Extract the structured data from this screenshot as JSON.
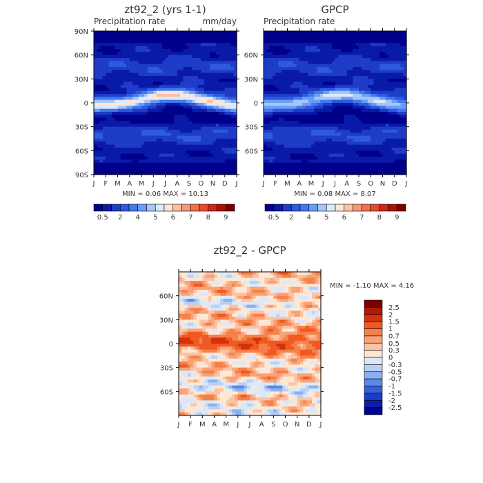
{
  "chart_data": [
    {
      "type": "heatmap",
      "title": "zt92_2 (yrs 1-1)",
      "subtitle_left": "Precipitation rate",
      "subtitle_right": "mm/day",
      "x_ticks": [
        "J",
        "F",
        "M",
        "A",
        "M",
        "J",
        "J",
        "A",
        "S",
        "O",
        "N",
        "D",
        "J"
      ],
      "y_ticks": [
        "90N",
        "60N",
        "30N",
        "0",
        "30S",
        "60S",
        "90S"
      ],
      "stats": "MIN =    0.06 MAX =   10.13",
      "colorbar_labels": [
        "0.5",
        "2",
        "4",
        "5",
        "6",
        "7",
        "8",
        "9"
      ],
      "colorbar_colors": [
        "#00008b",
        "#0a1aa8",
        "#1f3cc8",
        "#2d5ae0",
        "#3e7af0",
        "#6a9ef5",
        "#a7c6f8",
        "#dbe9fb",
        "#fde6d8",
        "#f9c2a6",
        "#f59a78",
        "#f07050",
        "#e64a2e",
        "#cc2a14",
        "#a81208",
        "#7a0000"
      ],
      "max_band_peak": 10.13
    },
    {
      "type": "heatmap",
      "title": "GPCP",
      "subtitle_left": "Precipitation rate",
      "x_ticks": [
        "J",
        "F",
        "M",
        "A",
        "M",
        "J",
        "J",
        "A",
        "S",
        "O",
        "N",
        "D",
        "J"
      ],
      "y_ticks": [
        "60N",
        "30N",
        "0",
        "30S",
        "60S"
      ],
      "stats": "MIN =    0.08 MAX =    8.07",
      "colorbar_labels": [
        "0.5",
        "2",
        "4",
        "5",
        "6",
        "7",
        "8",
        "9"
      ],
      "max_band_peak": 8.07
    },
    {
      "type": "heatmap",
      "title": "zt92_2 - GPCP",
      "x_ticks": [
        "J",
        "F",
        "M",
        "A",
        "M",
        "J",
        "J",
        "A",
        "S",
        "O",
        "N",
        "D",
        "J"
      ],
      "y_ticks": [
        "60N",
        "30N",
        "0",
        "30S",
        "60S"
      ],
      "stats": "MIN =   -1.10 MAX =    4.16",
      "colorbar_labels": [
        "2.5",
        "2",
        "1.5",
        "1",
        "0.7",
        "0.5",
        "0.3",
        "0",
        "-0.3",
        "-0.5",
        "-0.7",
        "-1",
        "-1.5",
        "-2",
        "-2.5"
      ],
      "colorbar_colors": [
        "#7a0000",
        "#b01a06",
        "#d8300c",
        "#ef5a22",
        "#f5814a",
        "#f8a278",
        "#fbc3a4",
        "#fde8d6",
        "#dbe8f8",
        "#b8d0f5",
        "#8ab0ef",
        "#5a88e6",
        "#3560dc",
        "#1a3cc8",
        "#0a1ea8",
        "#00008b"
      ]
    }
  ]
}
